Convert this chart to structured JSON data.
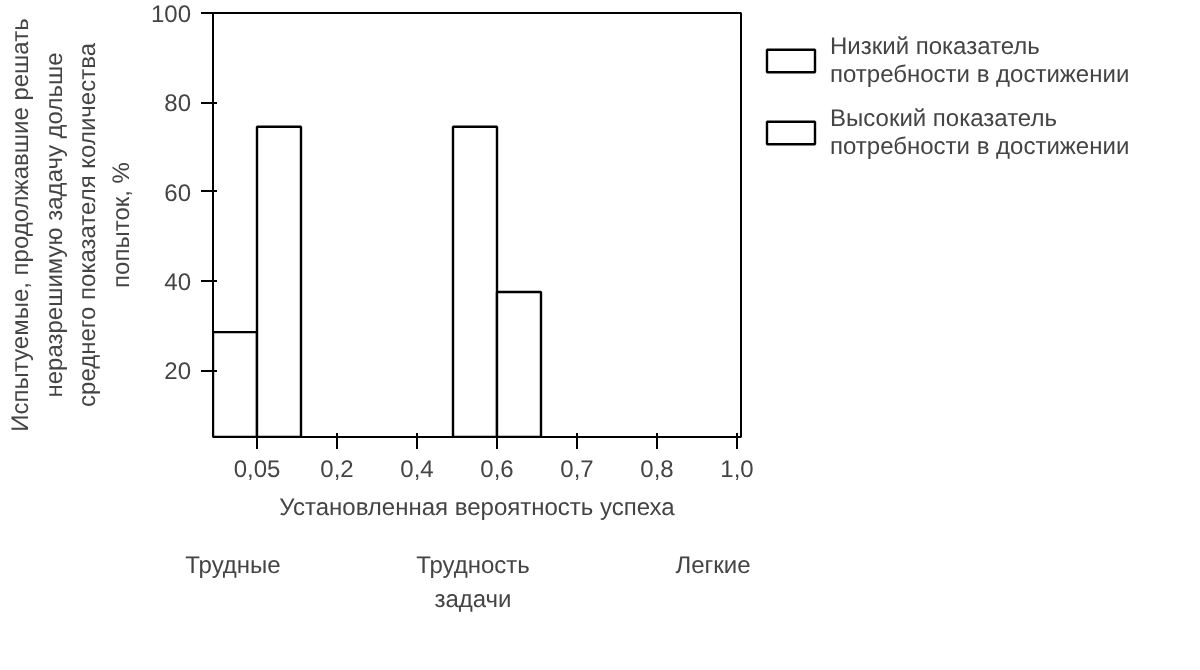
{
  "chart_data": {
    "type": "bar",
    "xlabel": "Установленная вероятность успеха",
    "ylabel": "Испытуемые, продолжавшие решать неразрешимую задачу дольше среднего показателя количества попыток, %",
    "categories": [
      "0,05",
      "0,2",
      "0,4",
      "0,6",
      "0,7",
      "0,8",
      "1,0"
    ],
    "series": [
      {
        "name": "Низкий показатель потребности в достижении",
        "color": "#ffffff",
        "values": [
          28.5,
          null,
          null,
          74.5,
          null,
          null,
          null
        ]
      },
      {
        "name": "Высокий показатель потребности в достижении",
        "color": "#ffffff",
        "values": [
          74.5,
          null,
          null,
          37.5,
          null,
          null,
          null
        ]
      }
    ],
    "ylim": [
      5,
      100
    ],
    "yticks": [
      20,
      40,
      60,
      80,
      100
    ],
    "grid": false,
    "legend": "top right",
    "annotations": [
      "Трудные",
      "Трудность задачи",
      "Легкие"
    ]
  }
}
